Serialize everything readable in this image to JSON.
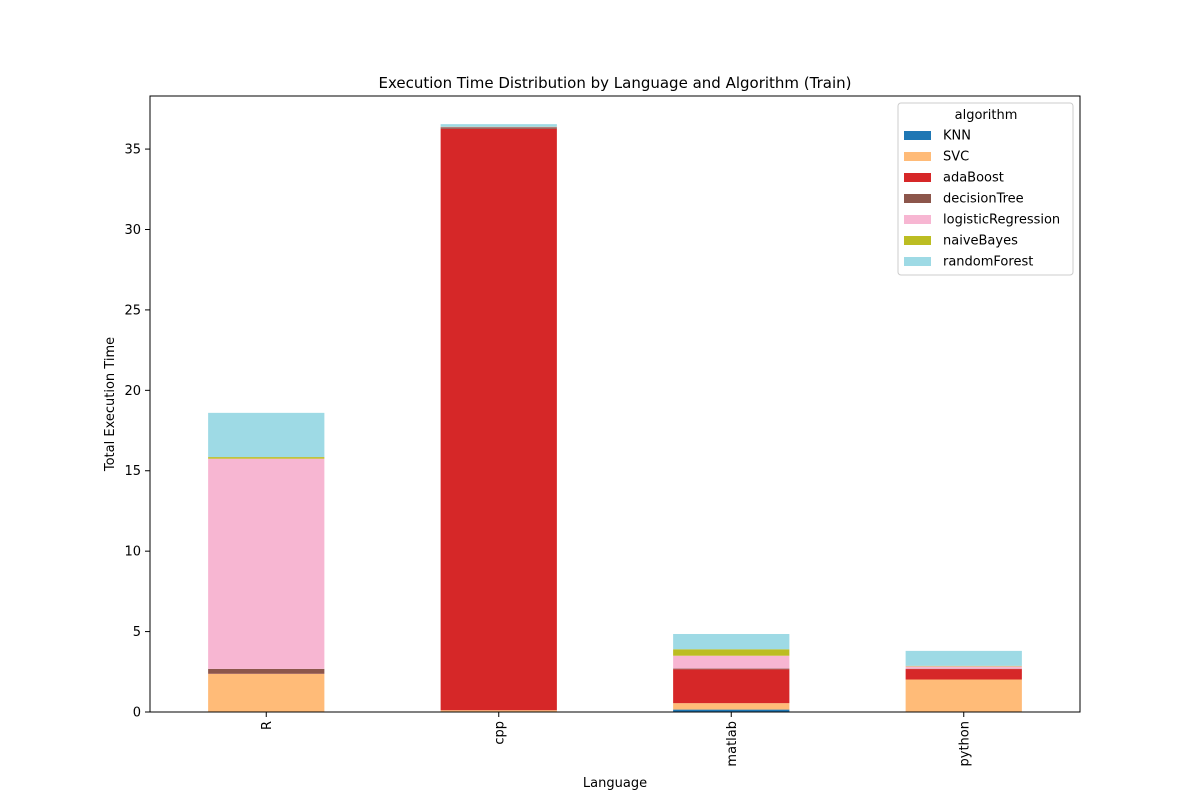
{
  "chart_data": {
    "type": "bar",
    "stacked": true,
    "title": "Execution Time Distribution by Language and Algorithm (Train)",
    "xlabel": "Language",
    "ylabel": "Total Execution Time",
    "ylim": [
      0,
      38.3
    ],
    "yticks": [
      0,
      5,
      10,
      15,
      20,
      25,
      30,
      35
    ],
    "categories": [
      "R",
      "cpp",
      "matlab",
      "python"
    ],
    "legend_title": "algorithm",
    "legend_position": "top-right",
    "series": [
      {
        "name": "KNN",
        "color": "#1f77b4",
        "values": [
          0.02,
          0.01,
          0.15,
          0.02
        ]
      },
      {
        "name": "SVC",
        "color": "#ffbb78",
        "values": [
          2.35,
          0.1,
          0.4,
          2.0
        ]
      },
      {
        "name": "adaBoost",
        "color": "#d62728",
        "values": [
          0.01,
          36.15,
          2.1,
          0.65
        ]
      },
      {
        "name": "decisionTree",
        "color": "#8c564b",
        "values": [
          0.3,
          0.1,
          0.05,
          0.02
        ]
      },
      {
        "name": "logisticRegression",
        "color": "#f7b6d2",
        "values": [
          13.07,
          0.02,
          0.8,
          0.15
        ]
      },
      {
        "name": "naiveBayes",
        "color": "#bcbd22",
        "values": [
          0.1,
          0.01,
          0.4,
          0.03
        ]
      },
      {
        "name": "randomForest",
        "color": "#9edae5",
        "values": [
          2.75,
          0.16,
          0.95,
          0.93
        ]
      }
    ]
  }
}
